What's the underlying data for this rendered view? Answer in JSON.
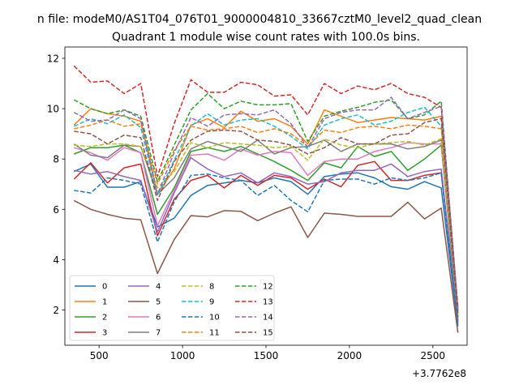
{
  "chart_data": {
    "type": "line",
    "suptitle": "n file: modeM0/AS1T04_076T01_9000004810_33667cztM0_level2_quad_clean",
    "title": "Quadrant 1 module wise count rates with 100.0s bins.",
    "xlabel": "",
    "ylabel": "",
    "x_offset_label": "+3.7762e8",
    "xlim": [
      295,
      2705
    ],
    "ylim": [
      0.6,
      12.45
    ],
    "x_ticks": [
      500,
      1000,
      1500,
      2000,
      2500
    ],
    "x_tick_labels": [
      "500",
      "1000",
      "1500",
      "2000",
      "2500"
    ],
    "y_ticks": [
      2,
      4,
      6,
      8,
      10,
      12
    ],
    "y_tick_labels": [
      "2",
      "4",
      "6",
      "8",
      "10",
      "12"
    ],
    "legend_location": "lower-left",
    "x": [
      350,
      450,
      550,
      650,
      750,
      850,
      950,
      1050,
      1150,
      1250,
      1350,
      1450,
      1550,
      1650,
      1750,
      1850,
      1950,
      2050,
      2150,
      2250,
      2350,
      2450,
      2550,
      2650
    ],
    "series": [
      {
        "name": "0",
        "color": "#1f77b4",
        "dash": "solid",
        "values": [
          7.5,
          7.8,
          6.88,
          6.88,
          7.1,
          5.3,
          5.65,
          6.55,
          6.95,
          7.05,
          7.15,
          7.05,
          7.25,
          7.1,
          6.6,
          7.3,
          7.4,
          7.45,
          7.25,
          6.9,
          6.8,
          7.1,
          6.85,
          1.35
        ]
      },
      {
        "name": "1",
        "color": "#ff7f0e",
        "dash": "solid",
        "values": [
          9.35,
          10.0,
          9.8,
          9.7,
          9.5,
          6.6,
          7.6,
          9.35,
          9.6,
          9.25,
          9.9,
          9.5,
          9.6,
          9.3,
          8.6,
          9.95,
          9.7,
          9.45,
          9.55,
          9.65,
          9.6,
          9.55,
          9.7,
          1.85
        ]
      },
      {
        "name": "2",
        "color": "#2ca02c",
        "dash": "solid",
        "values": [
          8.2,
          8.45,
          8.45,
          8.55,
          8.25,
          5.8,
          6.85,
          8.3,
          8.45,
          8.3,
          8.5,
          8.2,
          7.9,
          7.55,
          7.15,
          7.85,
          7.65,
          8.5,
          8.1,
          8.3,
          7.55,
          8.0,
          8.55,
          1.7
        ]
      },
      {
        "name": "3",
        "color": "#d62728",
        "dash": "solid",
        "values": [
          7.2,
          7.85,
          7.05,
          7.65,
          7.8,
          4.95,
          6.4,
          7.15,
          7.35,
          6.85,
          7.35,
          6.95,
          7.35,
          7.25,
          6.8,
          7.2,
          6.9,
          7.75,
          7.9,
          7.15,
          7.15,
          7.35,
          7.45,
          1.6
        ]
      },
      {
        "name": "4",
        "color": "#9467bd",
        "dash": "solid",
        "values": [
          7.55,
          7.4,
          7.5,
          7.3,
          7.15,
          5.1,
          6.65,
          8.05,
          7.6,
          7.3,
          7.45,
          7.05,
          7.45,
          7.3,
          7.0,
          7.1,
          7.45,
          7.55,
          7.55,
          7.8,
          7.3,
          7.5,
          7.6,
          1.5
        ]
      },
      {
        "name": "5",
        "color": "#8c564b",
        "dash": "solid",
        "values": [
          6.35,
          6.0,
          5.8,
          5.65,
          5.58,
          3.45,
          4.8,
          5.75,
          5.7,
          5.95,
          5.92,
          5.55,
          5.85,
          6.1,
          4.88,
          5.85,
          5.8,
          5.72,
          5.72,
          5.72,
          6.28,
          5.62,
          6.05,
          1.1
        ]
      },
      {
        "name": "6",
        "color": "#e377c2",
        "dash": "solid",
        "values": [
          8.45,
          8.25,
          7.95,
          8.45,
          8.25,
          5.35,
          6.75,
          8.15,
          8.2,
          7.95,
          8.4,
          8.15,
          8.3,
          8.25,
          7.35,
          7.9,
          8.0,
          8.0,
          8.3,
          8.45,
          8.65,
          8.6,
          8.6,
          1.55
        ]
      },
      {
        "name": "7",
        "color": "#7f7f7f",
        "dash": "solid",
        "values": [
          8.6,
          8.15,
          8.05,
          8.55,
          8.5,
          6.6,
          7.25,
          8.4,
          8.7,
          8.5,
          8.3,
          8.75,
          8.2,
          8.45,
          8.5,
          8.75,
          8.3,
          8.6,
          8.6,
          8.6,
          8.4,
          8.5,
          8.75,
          1.6
        ]
      },
      {
        "name": "8",
        "color": "#bcbd22",
        "dash": "dashed",
        "values": [
          8.55,
          8.5,
          8.6,
          8.6,
          8.5,
          6.85,
          7.5,
          8.65,
          8.45,
          8.65,
          8.6,
          8.55,
          8.45,
          8.5,
          7.95,
          8.8,
          8.55,
          8.45,
          8.6,
          8.65,
          8.7,
          8.55,
          8.8,
          1.8
        ]
      },
      {
        "name": "9",
        "color": "#17becf",
        "dash": "dashed",
        "values": [
          9.3,
          9.6,
          9.4,
          9.75,
          9.25,
          6.55,
          7.95,
          9.3,
          9.8,
          9.35,
          9.55,
          9.6,
          9.3,
          8.9,
          8.4,
          9.35,
          9.6,
          9.75,
          9.35,
          9.5,
          9.85,
          10.05,
          9.3,
          1.85
        ]
      },
      {
        "name": "10",
        "color": "#1f77b4",
        "dash": "dashed",
        "values": [
          6.75,
          6.65,
          7.25,
          7.15,
          7.0,
          4.7,
          6.3,
          7.35,
          7.4,
          7.25,
          7.15,
          6.55,
          6.95,
          6.35,
          5.9,
          7.15,
          7.2,
          7.2,
          7.0,
          7.25,
          7.15,
          7.25,
          7.45,
          1.4
        ]
      },
      {
        "name": "11",
        "color": "#ff7f0e",
        "dash": "dashed",
        "values": [
          9.2,
          9.35,
          9.55,
          9.3,
          9.4,
          7.0,
          8.35,
          9.3,
          9.15,
          9.2,
          9.3,
          9.05,
          9.2,
          9.0,
          8.5,
          9.15,
          9.05,
          9.25,
          9.3,
          9.2,
          9.35,
          9.3,
          9.2,
          1.9
        ]
      },
      {
        "name": "12",
        "color": "#2ca02c",
        "dash": "dashed",
        "values": [
          10.35,
          10.0,
          9.8,
          9.95,
          9.7,
          7.1,
          8.55,
          9.95,
          10.6,
          10.0,
          10.3,
          10.15,
          10.15,
          10.2,
          8.7,
          9.7,
          9.9,
          10.05,
          10.25,
          10.35,
          9.6,
          9.75,
          10.3,
          2.0
        ]
      },
      {
        "name": "13",
        "color": "#d62728",
        "dash": "dashed",
        "values": [
          11.7,
          11.05,
          11.1,
          10.6,
          11.0,
          7.3,
          9.4,
          11.15,
          10.65,
          10.65,
          11.05,
          10.95,
          10.5,
          10.55,
          9.75,
          11.0,
          10.6,
          10.9,
          10.75,
          11.0,
          10.6,
          10.45,
          10.05,
          2.1
        ]
      },
      {
        "name": "14",
        "color": "#9467bd",
        "dash": "dashed",
        "values": [
          9.85,
          9.5,
          9.55,
          9.95,
          9.6,
          6.6,
          8.25,
          9.65,
          9.3,
          9.75,
          9.8,
          9.75,
          9.95,
          9.4,
          8.45,
          9.6,
          9.85,
          9.95,
          9.95,
          10.45,
          9.6,
          9.85,
          10.1,
          1.95
        ]
      },
      {
        "name": "15",
        "color": "#8c564b",
        "dash": "dashed",
        "values": [
          9.1,
          9.0,
          8.6,
          8.95,
          8.85,
          6.35,
          7.9,
          8.75,
          9.1,
          9.15,
          9.1,
          8.75,
          8.7,
          8.55,
          8.2,
          8.45,
          8.85,
          8.6,
          8.6,
          8.95,
          9.0,
          9.45,
          9.6,
          1.75
        ]
      }
    ]
  }
}
